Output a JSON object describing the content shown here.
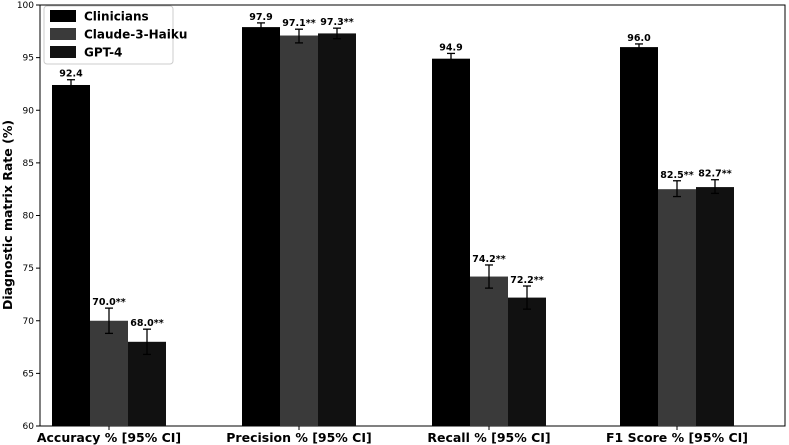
{
  "chart_data": {
    "type": "bar",
    "title": "",
    "xlabel": "",
    "ylabel": "Diagnostic matrix Rate (%)",
    "ylim": [
      60,
      100
    ],
    "yticks": [
      60,
      65,
      70,
      75,
      80,
      85,
      90,
      95,
      100
    ],
    "grid": false,
    "legend_position": "top-left",
    "categories": [
      "Accuracy % [95% CI]",
      "Precision % [95% CI]",
      "Recall % [95% CI]",
      "F1 Score % [95% CI]"
    ],
    "series": [
      {
        "name": "Clinicians",
        "color": "#000000",
        "values": [
          92.4,
          97.9,
          94.9,
          96.0
        ],
        "ci": [
          [
            91.9,
            92.9
          ],
          [
            97.5,
            98.3
          ],
          [
            94.4,
            95.4
          ],
          [
            95.7,
            96.3
          ]
        ],
        "labels": [
          "92.4",
          "97.9",
          "94.9",
          "96.0"
        ]
      },
      {
        "name": "Claude-3-Haiku",
        "color": "#3a3a3a",
        "values": [
          70.0,
          97.1,
          74.2,
          82.5
        ],
        "ci": [
          [
            68.8,
            71.2
          ],
          [
            96.4,
            97.7
          ],
          [
            73.1,
            75.3
          ],
          [
            81.8,
            83.3
          ]
        ],
        "labels": [
          "70.0**",
          "97.1**",
          "74.2**",
          "82.5**"
        ]
      },
      {
        "name": "GPT-4",
        "color": "#111111",
        "values": [
          68.0,
          97.3,
          72.2,
          82.7
        ],
        "ci": [
          [
            66.8,
            69.2
          ],
          [
            96.8,
            97.8
          ],
          [
            71.1,
            73.3
          ],
          [
            82.1,
            83.4
          ]
        ],
        "labels": [
          "68.0**",
          "97.3**",
          "72.2**",
          "82.7**"
        ]
      }
    ]
  }
}
